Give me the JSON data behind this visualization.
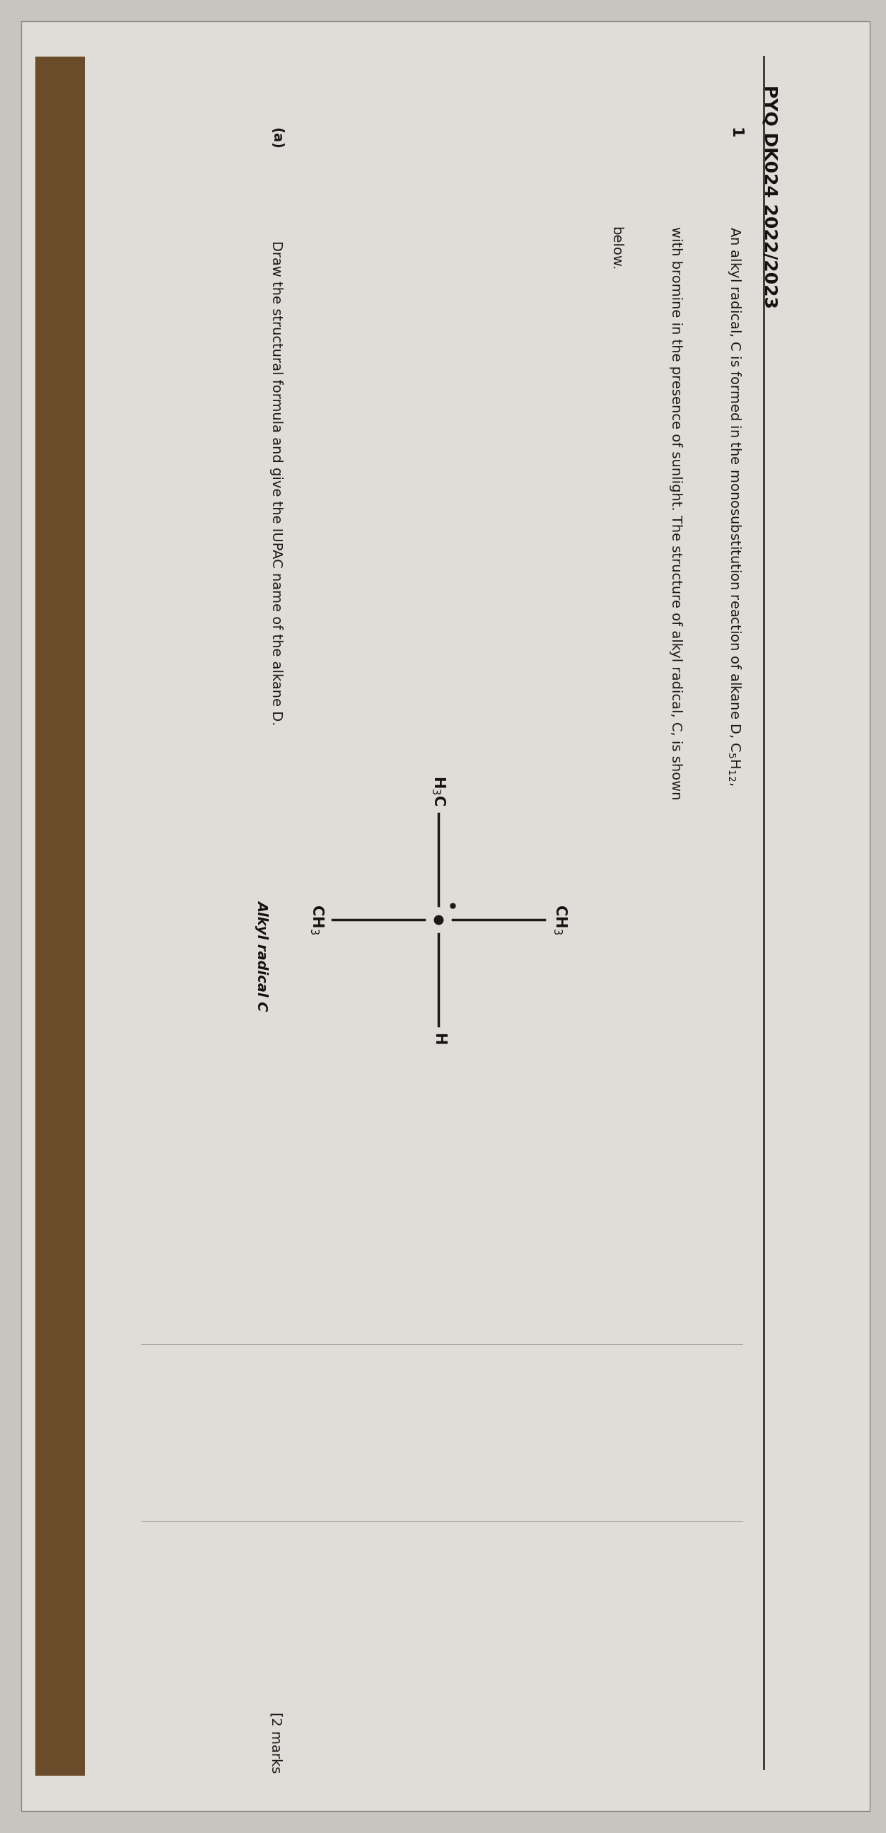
{
  "background_color": "#c8c5c0",
  "page_color": "#e0ddd8",
  "title": "PYQ DK024 2022/2023",
  "question_number": "1",
  "line1": "An alkyl radical, C is formed in the monosubstitution reaction of alkane D, C$_{5}$H$_{12}$,",
  "line2": "with bromine in the presence of sunlight. The structure of alkyl radical, C, is shown",
  "line3": "below.",
  "molecule_label": "Alkyl radical C",
  "subq": "(a)    Draw the structural formula and give the IUPAC name of the alkane D.",
  "marks": "[2 marks",
  "text_color": "#1a1a1a",
  "line_color": "#2a2a2a",
  "bold_color": "#111111"
}
